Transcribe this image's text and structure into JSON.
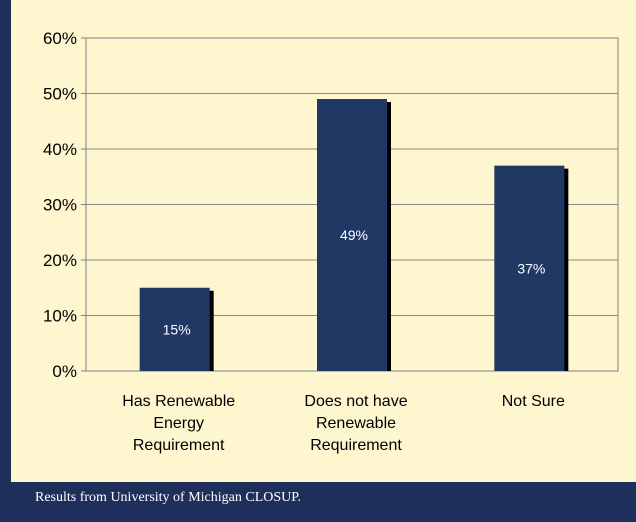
{
  "caption": "Results from University of Michigan CLOSUP.",
  "colors": {
    "background": "#1f2f5c",
    "panel": "#fdf6cf",
    "bar": "#1f3864",
    "shadow": "#000000"
  },
  "chart_data": {
    "type": "bar",
    "categories": [
      [
        "Has Renewable",
        "Energy",
        "Requirement"
      ],
      [
        "Does not have",
        "Renewable",
        "Requirement"
      ],
      [
        "Not Sure"
      ]
    ],
    "values": [
      15,
      49,
      37
    ],
    "data_labels": [
      "15%",
      "49%",
      "37%"
    ],
    "yticks": [
      "0%",
      "10%",
      "20%",
      "30%",
      "40%",
      "50%",
      "60%"
    ],
    "ylim": [
      0,
      60
    ],
    "grid": true,
    "legend": "none"
  }
}
